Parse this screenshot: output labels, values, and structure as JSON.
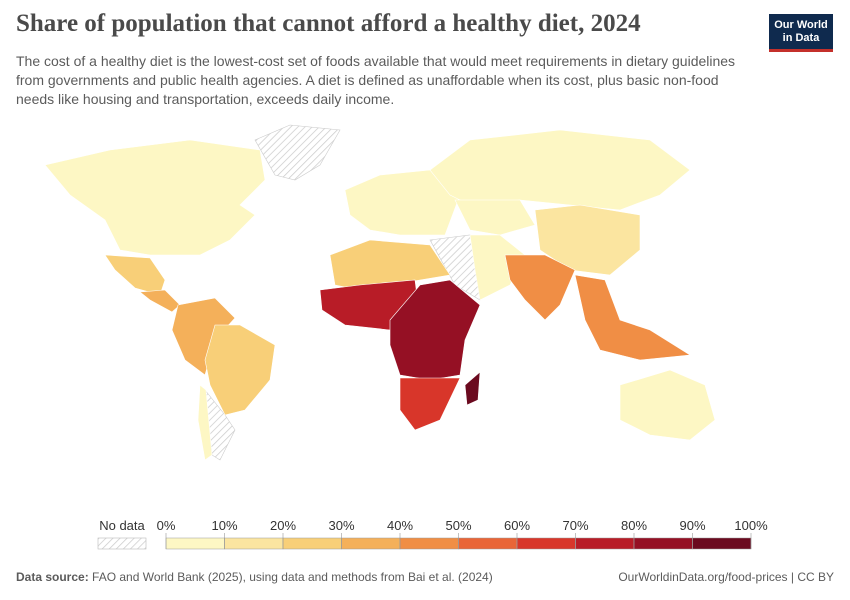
{
  "header": {
    "title": "Share of population that cannot afford a healthy diet, 2024",
    "subtitle": "The cost of a healthy diet is the lowest-cost set of foods available that would meet requirements in dietary guidelines from governments and public health agencies. A diet is defined as unaffordable when its cost, plus basic non-food needs like housing and transportation, exceeds daily income."
  },
  "logo": {
    "lines": [
      "Our World",
      "in Data"
    ]
  },
  "map": {
    "regions": [
      1,
      20,
      35,
      30,
      22,
      3,
      2,
      2,
      5,
      15,
      8,
      45,
      40,
      3,
      25,
      70,
      85,
      60,
      90
    ]
  },
  "legend": {
    "no_data": "No data",
    "ticks": [
      {
        "value": 0,
        "label": "0%"
      },
      {
        "value": 10,
        "label": "10%"
      },
      {
        "value": 20,
        "label": "20%"
      },
      {
        "value": 30,
        "label": "30%"
      },
      {
        "value": 40,
        "label": "40%"
      },
      {
        "value": 50,
        "label": "50%"
      },
      {
        "value": 60,
        "label": "60%"
      },
      {
        "value": 70,
        "label": "70%"
      },
      {
        "value": 80,
        "label": "80%"
      },
      {
        "value": 90,
        "label": "90%"
      },
      {
        "value": 100,
        "label": "100%"
      }
    ],
    "colors": [
      "#fdf7c4",
      "#fbe5a0",
      "#f8cf78",
      "#f4b05a",
      "#f08e45",
      "#e96537",
      "#d8362a",
      "#b81c27",
      "#951024",
      "#6b0a1f"
    ]
  },
  "footer": {
    "source_label": "Data source:",
    "source": "FAO and World Bank (2025), using data and methods from Bai et al. (2024)",
    "url": "OurWorldinData.org/food-prices | CC BY"
  }
}
